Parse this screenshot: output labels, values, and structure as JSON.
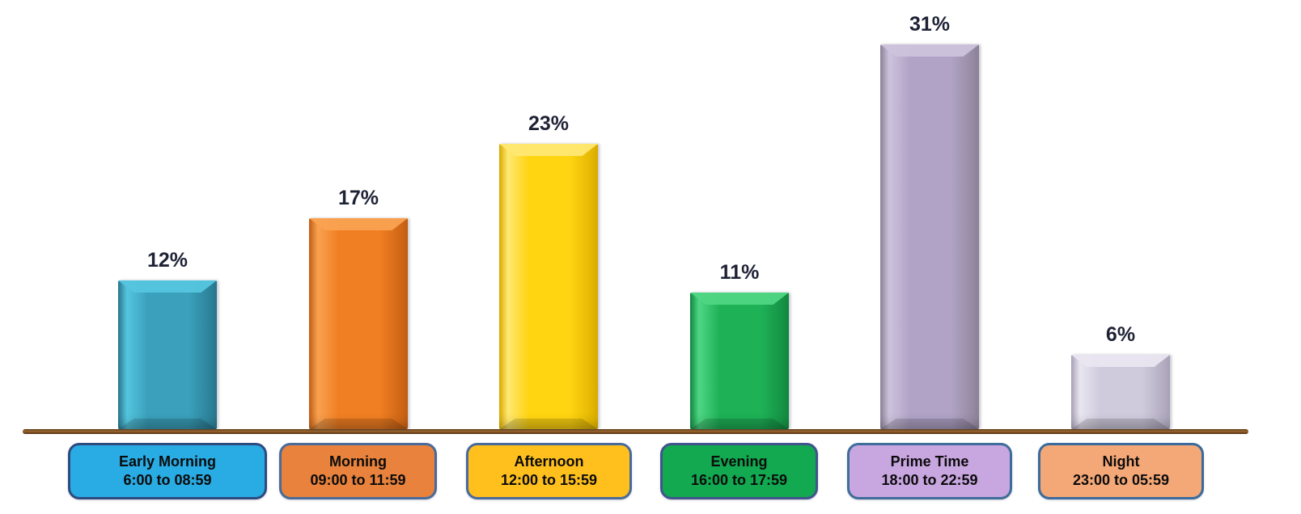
{
  "chart_data": {
    "type": "bar",
    "title": "",
    "xlabel": "",
    "ylabel": "",
    "ylim": [
      0,
      35
    ],
    "grid": false,
    "legend": false,
    "categories": [
      "Early Morning",
      "Morning",
      "Afternoon",
      "Evening",
      "Prime Time",
      "Night"
    ],
    "category_sublabels": [
      "6:00 to 08:59",
      "09:00 to 11:59",
      "12:00 to 15:59",
      "16:00 to 17:59",
      "18:00 to 22:59",
      "23:00 to 05:59"
    ],
    "values": [
      12,
      17,
      23,
      11,
      31,
      6
    ],
    "value_labels": [
      "12%",
      "17%",
      "23%",
      "11%",
      "31%",
      "6%"
    ],
    "bar_colors": [
      "#3aa0bb",
      "#f07e22",
      "#ffd411",
      "#1eb156",
      "#b0a3c6",
      "#cfcadc"
    ],
    "axis_line_color": "#7a4a1e"
  },
  "chart": {
    "bars": [
      {
        "label": "Early Morning",
        "time_range": "6:00 to 08:59",
        "value": 12,
        "value_label": "12%",
        "bar_base": "#3aa0bb",
        "bar_light": "#55c5de",
        "bar_dark": "#29788f",
        "box_fill": "#29abe3",
        "box_border": "#2e4b80"
      },
      {
        "label": "Morning",
        "time_range": "09:00 to 11:59",
        "value": 17,
        "value_label": "17%",
        "bar_base": "#f07e22",
        "bar_light": "#f9a251",
        "bar_dark": "#c45f13",
        "box_fill": "#e8823c",
        "box_border": "#4a6b99"
      },
      {
        "label": "Afternoon",
        "time_range": "12:00 to 15:59",
        "value": 23,
        "value_label": "23%",
        "bar_base": "#ffd411",
        "bar_light": "#ffe873",
        "bar_dark": "#dcae00",
        "box_fill": "#ffc01e",
        "box_border": "#4a6b99"
      },
      {
        "label": "Evening",
        "time_range": "16:00 to 17:59",
        "value": 11,
        "value_label": "11%",
        "bar_base": "#1eb156",
        "bar_light": "#4fd684",
        "bar_dark": "#128a41",
        "box_fill": "#12a950",
        "box_border": "#41548c"
      },
      {
        "label": "Prime Time",
        "time_range": "18:00 to 22:59",
        "value": 31,
        "value_label": "31%",
        "bar_base": "#b0a3c6",
        "bar_light": "#cdc3dc",
        "bar_dark": "#8e8399",
        "box_fill": "#c8a6e0",
        "box_border": "#3f6d9b"
      },
      {
        "label": "Night",
        "time_range": "23:00 to 05:59",
        "value": 6,
        "value_label": "6%",
        "bar_base": "#cfcadc",
        "bar_light": "#e9e6f1",
        "bar_dark": "#aba4ba",
        "box_fill": "#f5a877",
        "box_border": "#3a6b9c"
      }
    ]
  }
}
